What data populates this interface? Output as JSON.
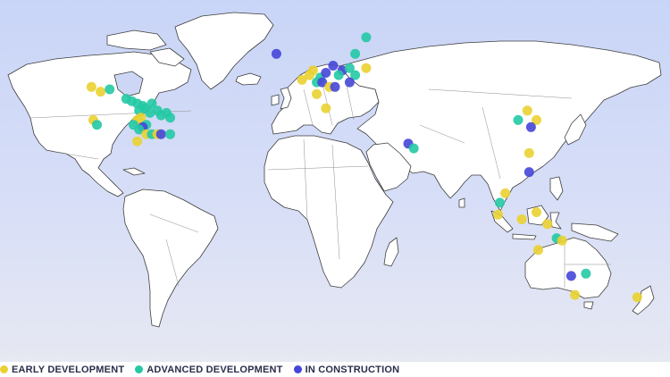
{
  "colors": {
    "early": "#ead131",
    "advanced": "#24c9a4",
    "construction": "#4646d8"
  },
  "legend": [
    {
      "key": "early",
      "label": "EARLY DEVELOPMENT"
    },
    {
      "key": "advanced",
      "label": "ADVANCED DEVELOPMENT"
    },
    {
      "key": "construction",
      "label": "IN CONSTRUCTION"
    }
  ],
  "projects": [
    {
      "s": "early",
      "lon": -123,
      "lat": 50
    },
    {
      "s": "early",
      "lon": -118,
      "lat": 48
    },
    {
      "s": "advanced",
      "lon": -113,
      "lat": 49
    },
    {
      "s": "advanced",
      "lon": -104,
      "lat": 45
    },
    {
      "s": "advanced",
      "lon": -101,
      "lat": 44
    },
    {
      "s": "advanced",
      "lon": -98,
      "lat": 43
    },
    {
      "s": "advanced",
      "lon": -95,
      "lat": 42
    },
    {
      "s": "advanced",
      "lon": -90,
      "lat": 43
    },
    {
      "s": "advanced",
      "lon": -94,
      "lat": 41
    },
    {
      "s": "advanced",
      "lon": -97,
      "lat": 40
    },
    {
      "s": "advanced",
      "lon": -87,
      "lat": 40
    },
    {
      "s": "advanced",
      "lon": -85,
      "lat": 38
    },
    {
      "s": "advanced",
      "lon": -91,
      "lat": 39
    },
    {
      "s": "advanced",
      "lon": -82,
      "lat": 39
    },
    {
      "s": "advanced",
      "lon": -80,
      "lat": 37
    },
    {
      "s": "early",
      "lon": -98,
      "lat": 36
    },
    {
      "s": "early",
      "lon": -96,
      "lat": 37
    },
    {
      "s": "advanced",
      "lon": -100,
      "lat": 34
    },
    {
      "s": "advanced",
      "lon": -93,
      "lat": 34
    },
    {
      "s": "early",
      "lon": -122,
      "lat": 36
    },
    {
      "s": "advanced",
      "lon": -120,
      "lat": 34
    },
    {
      "s": "construction",
      "lon": -95,
      "lat": 33
    },
    {
      "s": "advanced",
      "lon": -97,
      "lat": 32
    },
    {
      "s": "early",
      "lon": -93,
      "lat": 30
    },
    {
      "s": "advanced",
      "lon": -90,
      "lat": 30
    },
    {
      "s": "early",
      "lon": -87,
      "lat": 30
    },
    {
      "s": "construction",
      "lon": -85,
      "lat": 30
    },
    {
      "s": "advanced",
      "lon": -80,
      "lat": 30
    },
    {
      "s": "early",
      "lon": -98,
      "lat": 27
    },
    {
      "s": "construction",
      "lon": -22,
      "lat": 64
    },
    {
      "s": "early",
      "lon": -8,
      "lat": 53
    },
    {
      "s": "early",
      "lon": -4,
      "lat": 55
    },
    {
      "s": "early",
      "lon": -2,
      "lat": 57
    },
    {
      "s": "advanced",
      "lon": 0,
      "lat": 52
    },
    {
      "s": "advanced",
      "lon": 2,
      "lat": 54
    },
    {
      "s": "construction",
      "lon": 5,
      "lat": 56
    },
    {
      "s": "construction",
      "lon": 3,
      "lat": 52
    },
    {
      "s": "early",
      "lon": 7,
      "lat": 50
    },
    {
      "s": "construction",
      "lon": 9,
      "lat": 59
    },
    {
      "s": "construction",
      "lon": 14,
      "lat": 57
    },
    {
      "s": "advanced",
      "lon": 12,
      "lat": 55
    },
    {
      "s": "advanced",
      "lon": 18,
      "lat": 58
    },
    {
      "s": "advanced",
      "lon": 21,
      "lat": 64
    },
    {
      "s": "advanced",
      "lon": 27,
      "lat": 71
    },
    {
      "s": "advanced",
      "lon": 21,
      "lat": 55
    },
    {
      "s": "construction",
      "lon": 10,
      "lat": 50
    },
    {
      "s": "early",
      "lon": 27,
      "lat": 58
    },
    {
      "s": "construction",
      "lon": 18,
      "lat": 52
    },
    {
      "s": "early",
      "lon": 0,
      "lat": 47
    },
    {
      "s": "early",
      "lon": 5,
      "lat": 41
    },
    {
      "s": "construction",
      "lon": 50,
      "lat": 26
    },
    {
      "s": "advanced",
      "lon": 53,
      "lat": 24
    },
    {
      "s": "advanced",
      "lon": 110,
      "lat": 36
    },
    {
      "s": "early",
      "lon": 115,
      "lat": 40
    },
    {
      "s": "early",
      "lon": 120,
      "lat": 36
    },
    {
      "s": "construction",
      "lon": 117,
      "lat": 33
    },
    {
      "s": "early",
      "lon": 116,
      "lat": 22
    },
    {
      "s": "construction",
      "lon": 116,
      "lat": 14
    },
    {
      "s": "early",
      "lon": 103,
      "lat": 5
    },
    {
      "s": "advanced",
      "lon": 100,
      "lat": 1
    },
    {
      "s": "early",
      "lon": 99,
      "lat": -4
    },
    {
      "s": "early",
      "lon": 112,
      "lat": -6
    },
    {
      "s": "early",
      "lon": 120,
      "lat": -3
    },
    {
      "s": "early",
      "lon": 126,
      "lat": -8
    },
    {
      "s": "advanced",
      "lon": 131,
      "lat": -14
    },
    {
      "s": "early",
      "lon": 134,
      "lat": -15
    },
    {
      "s": "early",
      "lon": 121,
      "lat": -19
    },
    {
      "s": "construction",
      "lon": 139,
      "lat": -30
    },
    {
      "s": "advanced",
      "lon": 147,
      "lat": -29
    },
    {
      "s": "early",
      "lon": 141,
      "lat": -38
    },
    {
      "s": "early",
      "lon": 175,
      "lat": -39
    }
  ]
}
